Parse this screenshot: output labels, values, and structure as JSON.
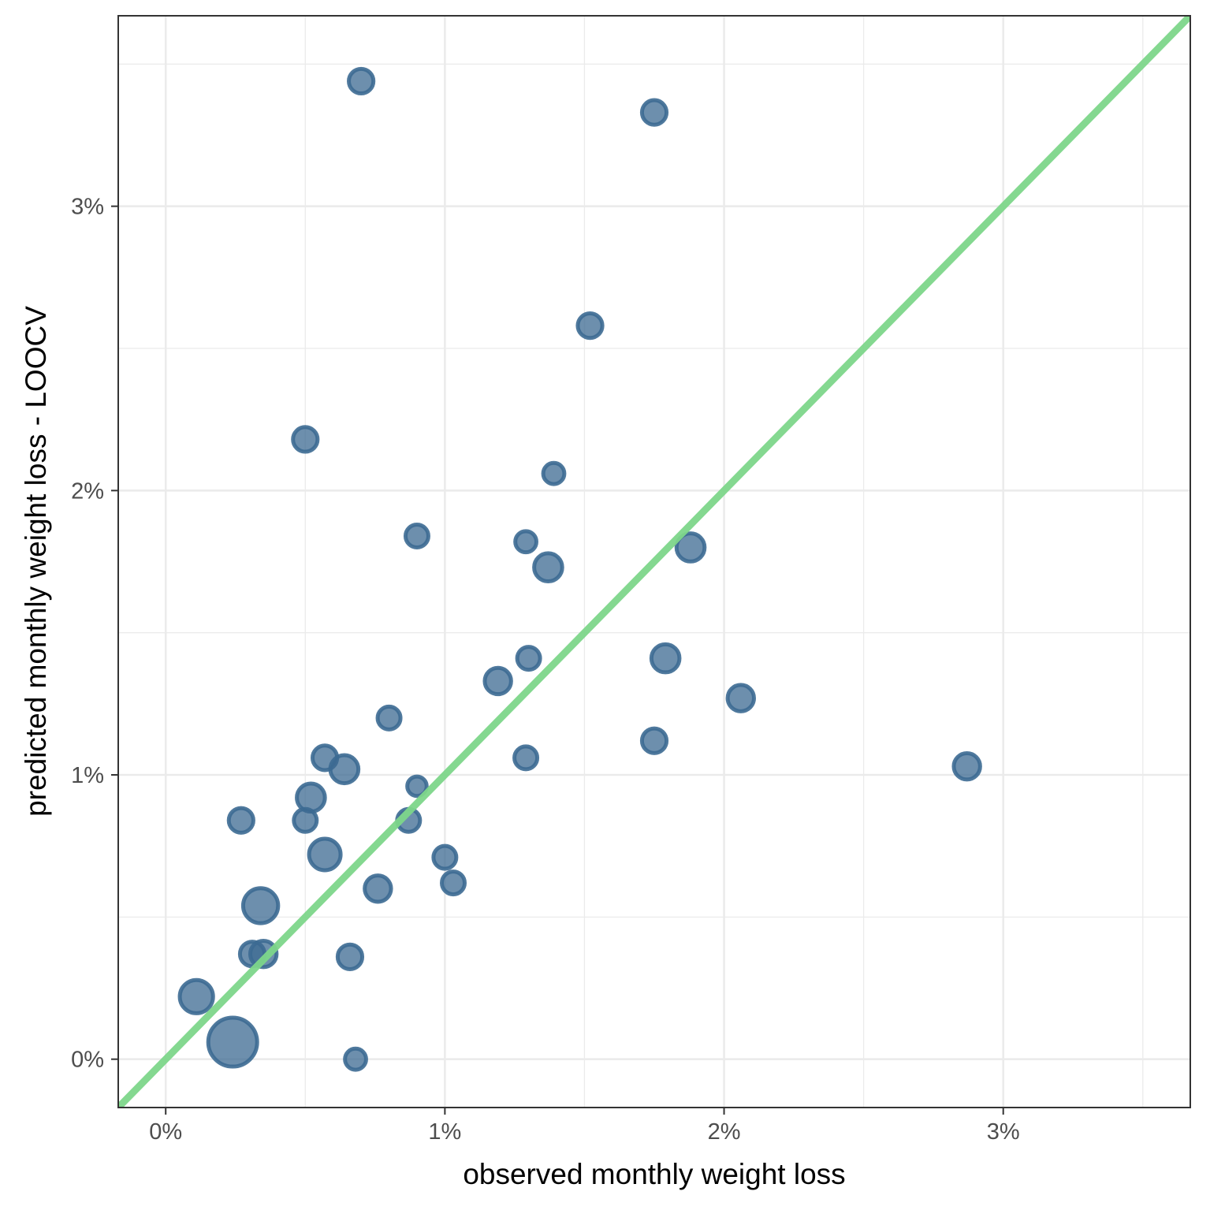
{
  "chart_data": {
    "type": "scatter",
    "title": "",
    "xlabel": "observed monthly weight loss",
    "ylabel": "predicted monthly weight loss - LOOCV",
    "xlim": [
      -0.0017,
      0.0367
    ],
    "ylim": [
      -0.0017,
      0.0367
    ],
    "x_ticks": [
      0,
      0.01,
      0.02,
      0.03
    ],
    "x_tick_labels": [
      "0%",
      "1%",
      "2%",
      "3%"
    ],
    "y_ticks": [
      0,
      0.01,
      0.02,
      0.03
    ],
    "y_tick_labels": [
      "0%",
      "1%",
      "2%",
      "3%"
    ],
    "grid": true,
    "legend": "none",
    "reference_line": {
      "slope": 1,
      "intercept": 0,
      "color": "#7dd68a"
    },
    "point_color": "#3c6a92",
    "points": [
      {
        "x": 0.007,
        "y": 0.0344,
        "size": 3
      },
      {
        "x": 0.0175,
        "y": 0.0333,
        "size": 3
      },
      {
        "x": 0.0152,
        "y": 0.0258,
        "size": 3
      },
      {
        "x": 0.005,
        "y": 0.0218,
        "size": 3
      },
      {
        "x": 0.0139,
        "y": 0.0206,
        "size": 2
      },
      {
        "x": 0.009,
        "y": 0.0184,
        "size": 2.5
      },
      {
        "x": 0.0129,
        "y": 0.0182,
        "size": 2
      },
      {
        "x": 0.0137,
        "y": 0.0173,
        "size": 4
      },
      {
        "x": 0.0188,
        "y": 0.018,
        "size": 4
      },
      {
        "x": 0.013,
        "y": 0.0141,
        "size": 2.5
      },
      {
        "x": 0.0179,
        "y": 0.0141,
        "size": 4
      },
      {
        "x": 0.0119,
        "y": 0.0133,
        "size": 3.5
      },
      {
        "x": 0.0206,
        "y": 0.0127,
        "size": 3.5
      },
      {
        "x": 0.008,
        "y": 0.012,
        "size": 2.5
      },
      {
        "x": 0.0175,
        "y": 0.0112,
        "size": 3
      },
      {
        "x": 0.0057,
        "y": 0.0106,
        "size": 3
      },
      {
        "x": 0.0129,
        "y": 0.0106,
        "size": 2.5
      },
      {
        "x": 0.0064,
        "y": 0.0102,
        "size": 4
      },
      {
        "x": 0.0287,
        "y": 0.0103,
        "size": 3.5
      },
      {
        "x": 0.009,
        "y": 0.0096,
        "size": 1.5
      },
      {
        "x": 0.0052,
        "y": 0.0092,
        "size": 4
      },
      {
        "x": 0.0027,
        "y": 0.0084,
        "size": 3
      },
      {
        "x": 0.005,
        "y": 0.0084,
        "size": 2.5
      },
      {
        "x": 0.0087,
        "y": 0.0084,
        "size": 2.5
      },
      {
        "x": 0.0057,
        "y": 0.0072,
        "size": 5
      },
      {
        "x": 0.01,
        "y": 0.0071,
        "size": 2.5
      },
      {
        "x": 0.0103,
        "y": 0.0062,
        "size": 2.5
      },
      {
        "x": 0.0076,
        "y": 0.006,
        "size": 3.5
      },
      {
        "x": 0.0034,
        "y": 0.0054,
        "size": 6
      },
      {
        "x": 0.0031,
        "y": 0.0037,
        "size": 3
      },
      {
        "x": 0.0035,
        "y": 0.0037,
        "size": 3.5
      },
      {
        "x": 0.0066,
        "y": 0.0036,
        "size": 3
      },
      {
        "x": 0.0011,
        "y": 0.0022,
        "size": 5.5
      },
      {
        "x": 0.0024,
        "y": 0.0006,
        "size": 10
      },
      {
        "x": 0.0068,
        "y": 0.0,
        "size": 2
      }
    ]
  }
}
